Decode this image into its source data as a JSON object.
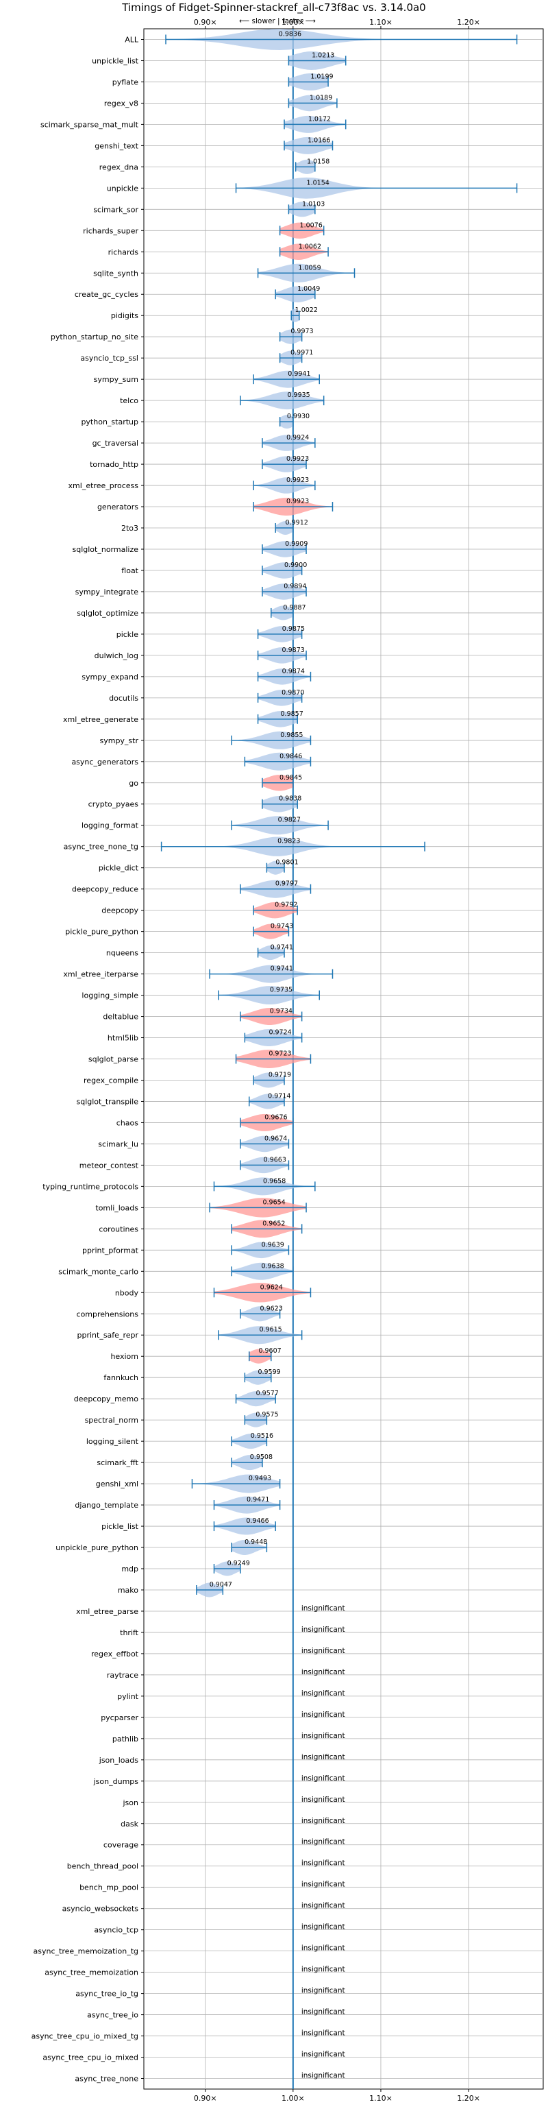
{
  "chart_data": {
    "type": "violin",
    "title": "Timings of Fidget-Spinner-stackref_all-c73f8ac vs. 3.14.0a0",
    "subtitle": "⟵ slower | faster ⟶",
    "xlim": [
      0.83,
      1.285
    ],
    "x_ticks": [
      "0.90×",
      "1.00×",
      "1.10×",
      "1.20×"
    ],
    "x_tick_values": [
      0.9,
      1.0,
      1.1,
      1.2
    ],
    "reference_line": 1.0,
    "grid": true,
    "colors": {
      "faster": "#aec7e8",
      "slower": "#ff9896",
      "line": "#1f77b4"
    },
    "benchmarks": [
      {
        "name": "ALL",
        "mean": 0.9836,
        "label": "0.9836",
        "min": 0.855,
        "max": 1.255,
        "width": 0.045,
        "color": "faster"
      },
      {
        "name": "unpickle_list",
        "mean": 1.0213,
        "label": "1.0213",
        "min": 0.995,
        "max": 1.06,
        "width": 0.022,
        "color": "faster"
      },
      {
        "name": "pyflate",
        "mean": 1.0199,
        "label": "1.0199",
        "min": 0.995,
        "max": 1.04,
        "width": 0.018,
        "color": "faster"
      },
      {
        "name": "regex_v8",
        "mean": 1.0189,
        "label": "1.0189",
        "min": 0.995,
        "max": 1.05,
        "width": 0.015,
        "color": "faster"
      },
      {
        "name": "scimark_sparse_mat_mult",
        "mean": 1.0172,
        "label": "1.0172",
        "min": 0.99,
        "max": 1.06,
        "width": 0.018,
        "color": "faster"
      },
      {
        "name": "genshi_text",
        "mean": 1.0166,
        "label": "1.0166",
        "min": 0.99,
        "max": 1.045,
        "width": 0.018,
        "color": "faster"
      },
      {
        "name": "regex_dna",
        "mean": 1.0158,
        "label": "1.0158",
        "min": 1.003,
        "max": 1.025,
        "width": 0.01,
        "color": "faster"
      },
      {
        "name": "unpickle",
        "mean": 1.0154,
        "label": "1.0154",
        "min": 0.935,
        "max": 1.255,
        "width": 0.03,
        "color": "faster"
      },
      {
        "name": "scimark_sor",
        "mean": 1.0103,
        "label": "1.0103",
        "min": 0.995,
        "max": 1.025,
        "width": 0.012,
        "color": "faster"
      },
      {
        "name": "richards_super",
        "mean": 1.0076,
        "label": "1.0076",
        "min": 0.985,
        "max": 1.035,
        "width": 0.015,
        "color": "slower"
      },
      {
        "name": "richards",
        "mean": 1.0062,
        "label": "1.0062",
        "min": 0.985,
        "max": 1.04,
        "width": 0.015,
        "color": "slower"
      },
      {
        "name": "sqlite_synth",
        "mean": 1.0059,
        "label": "1.0059",
        "min": 0.96,
        "max": 1.07,
        "width": 0.022,
        "color": "faster"
      },
      {
        "name": "create_gc_cycles",
        "mean": 1.0049,
        "label": "1.0049",
        "min": 0.98,
        "max": 1.025,
        "width": 0.015,
        "color": "faster"
      },
      {
        "name": "pidigits",
        "mean": 1.0022,
        "label": "1.0022",
        "min": 0.998,
        "max": 1.007,
        "width": 0.006,
        "color": "faster"
      },
      {
        "name": "python_startup_no_site",
        "mean": 0.9973,
        "label": "0.9973",
        "min": 0.985,
        "max": 1.01,
        "width": 0.01,
        "color": "faster"
      },
      {
        "name": "asyncio_tcp_ssl",
        "mean": 0.9971,
        "label": "0.9971",
        "min": 0.985,
        "max": 1.01,
        "width": 0.01,
        "color": "faster"
      },
      {
        "name": "sympy_sum",
        "mean": 0.9941,
        "label": "0.9941",
        "min": 0.955,
        "max": 1.03,
        "width": 0.018,
        "color": "faster"
      },
      {
        "name": "telco",
        "mean": 0.9935,
        "label": "0.9935",
        "min": 0.94,
        "max": 1.035,
        "width": 0.02,
        "color": "faster"
      },
      {
        "name": "python_startup",
        "mean": 0.993,
        "label": "0.9930",
        "min": 0.985,
        "max": 1.0,
        "width": 0.008,
        "color": "faster"
      },
      {
        "name": "gc_traversal",
        "mean": 0.9924,
        "label": "0.9924",
        "min": 0.965,
        "max": 1.025,
        "width": 0.015,
        "color": "faster"
      },
      {
        "name": "tornado_http",
        "mean": 0.9923,
        "label": "0.9923",
        "min": 0.965,
        "max": 1.015,
        "width": 0.015,
        "color": "faster"
      },
      {
        "name": "xml_etree_process",
        "mean": 0.9923,
        "label": "0.9923",
        "min": 0.955,
        "max": 1.025,
        "width": 0.015,
        "color": "faster"
      },
      {
        "name": "generators",
        "mean": 0.9923,
        "label": "0.9923",
        "min": 0.955,
        "max": 1.045,
        "width": 0.02,
        "color": "slower"
      },
      {
        "name": "2to3",
        "mean": 0.9912,
        "label": "0.9912",
        "min": 0.98,
        "max": 1.0,
        "width": 0.008,
        "color": "faster"
      },
      {
        "name": "sqlglot_normalize",
        "mean": 0.9909,
        "label": "0.9909",
        "min": 0.965,
        "max": 1.015,
        "width": 0.015,
        "color": "faster"
      },
      {
        "name": "float",
        "mean": 0.99,
        "label": "0.9900",
        "min": 0.965,
        "max": 1.01,
        "width": 0.015,
        "color": "faster"
      },
      {
        "name": "sympy_integrate",
        "mean": 0.9894,
        "label": "0.9894",
        "min": 0.965,
        "max": 1.015,
        "width": 0.015,
        "color": "faster"
      },
      {
        "name": "sqlglot_optimize",
        "mean": 0.9887,
        "label": "0.9887",
        "min": 0.975,
        "max": 1.0,
        "width": 0.01,
        "color": "faster"
      },
      {
        "name": "pickle",
        "mean": 0.9875,
        "label": "0.9875",
        "min": 0.96,
        "max": 1.01,
        "width": 0.015,
        "color": "faster"
      },
      {
        "name": "dulwich_log",
        "mean": 0.9873,
        "label": "0.9873",
        "min": 0.96,
        "max": 1.015,
        "width": 0.015,
        "color": "faster"
      },
      {
        "name": "sympy_expand",
        "mean": 0.9874,
        "label": "0.9874",
        "min": 0.96,
        "max": 1.02,
        "width": 0.015,
        "color": "faster"
      },
      {
        "name": "docutils",
        "mean": 0.987,
        "label": "0.9870",
        "min": 0.96,
        "max": 1.01,
        "width": 0.015,
        "color": "faster"
      },
      {
        "name": "xml_etree_generate",
        "mean": 0.9857,
        "label": "0.9857",
        "min": 0.96,
        "max": 1.005,
        "width": 0.015,
        "color": "faster"
      },
      {
        "name": "sympy_str",
        "mean": 0.9855,
        "label": "0.9855",
        "min": 0.93,
        "max": 1.02,
        "width": 0.02,
        "color": "faster"
      },
      {
        "name": "async_generators",
        "mean": 0.9846,
        "label": "0.9846",
        "min": 0.945,
        "max": 1.02,
        "width": 0.02,
        "color": "faster"
      },
      {
        "name": "go",
        "mean": 0.9845,
        "label": "0.9845",
        "min": 0.965,
        "max": 1.0,
        "width": 0.015,
        "color": "slower"
      },
      {
        "name": "crypto_pyaes",
        "mean": 0.9838,
        "label": "0.9838",
        "min": 0.965,
        "max": 1.005,
        "width": 0.015,
        "color": "faster"
      },
      {
        "name": "logging_format",
        "mean": 0.9827,
        "label": "0.9827",
        "min": 0.93,
        "max": 1.04,
        "width": 0.022,
        "color": "faster"
      },
      {
        "name": "async_tree_none_tg",
        "mean": 0.9823,
        "label": "0.9823",
        "min": 0.85,
        "max": 1.15,
        "width": 0.025,
        "color": "faster"
      },
      {
        "name": "pickle_dict",
        "mean": 0.9801,
        "label": "0.9801",
        "min": 0.97,
        "max": 0.99,
        "width": 0.008,
        "color": "faster"
      },
      {
        "name": "deepcopy_reduce",
        "mean": 0.9797,
        "label": "0.9797",
        "min": 0.94,
        "max": 1.02,
        "width": 0.02,
        "color": "faster"
      },
      {
        "name": "deepcopy",
        "mean": 0.9792,
        "label": "0.9792",
        "min": 0.955,
        "max": 1.005,
        "width": 0.015,
        "color": "slower"
      },
      {
        "name": "pickle_pure_python",
        "mean": 0.9743,
        "label": "0.9743",
        "min": 0.955,
        "max": 0.995,
        "width": 0.012,
        "color": "slower"
      },
      {
        "name": "nqueens",
        "mean": 0.9741,
        "label": "0.9741",
        "min": 0.96,
        "max": 0.99,
        "width": 0.01,
        "color": "faster"
      },
      {
        "name": "xml_etree_iterparse",
        "mean": 0.9741,
        "label": "0.9741",
        "min": 0.905,
        "max": 1.045,
        "width": 0.02,
        "color": "faster"
      },
      {
        "name": "logging_simple",
        "mean": 0.9735,
        "label": "0.9735",
        "min": 0.915,
        "max": 1.03,
        "width": 0.022,
        "color": "faster"
      },
      {
        "name": "deltablue",
        "mean": 0.9734,
        "label": "0.9734",
        "min": 0.94,
        "max": 1.01,
        "width": 0.018,
        "color": "slower"
      },
      {
        "name": "html5lib",
        "mean": 0.9724,
        "label": "0.9724",
        "min": 0.945,
        "max": 1.01,
        "width": 0.018,
        "color": "faster"
      },
      {
        "name": "sqlglot_parse",
        "mean": 0.9723,
        "label": "0.9723",
        "min": 0.935,
        "max": 1.02,
        "width": 0.022,
        "color": "slower"
      },
      {
        "name": "regex_compile",
        "mean": 0.9719,
        "label": "0.9719",
        "min": 0.955,
        "max": 0.99,
        "width": 0.012,
        "color": "faster"
      },
      {
        "name": "sqlglot_transpile",
        "mean": 0.9714,
        "label": "0.9714",
        "min": 0.95,
        "max": 0.99,
        "width": 0.012,
        "color": "faster"
      },
      {
        "name": "chaos",
        "mean": 0.9676,
        "label": "0.9676",
        "min": 0.94,
        "max": 1.0,
        "width": 0.018,
        "color": "slower"
      },
      {
        "name": "scimark_lu",
        "mean": 0.9674,
        "label": "0.9674",
        "min": 0.94,
        "max": 0.995,
        "width": 0.015,
        "color": "faster"
      },
      {
        "name": "meteor_contest",
        "mean": 0.9663,
        "label": "0.9663",
        "min": 0.94,
        "max": 0.995,
        "width": 0.015,
        "color": "faster"
      },
      {
        "name": "typing_runtime_protocols",
        "mean": 0.9658,
        "label": "0.9658",
        "min": 0.91,
        "max": 1.025,
        "width": 0.02,
        "color": "faster"
      },
      {
        "name": "tomli_loads",
        "mean": 0.9654,
        "label": "0.9654",
        "min": 0.905,
        "max": 1.015,
        "width": 0.025,
        "color": "slower"
      },
      {
        "name": "coroutines",
        "mean": 0.9652,
        "label": "0.9652",
        "min": 0.93,
        "max": 1.01,
        "width": 0.02,
        "color": "slower"
      },
      {
        "name": "pprint_pformat",
        "mean": 0.9639,
        "label": "0.9639",
        "min": 0.93,
        "max": 0.995,
        "width": 0.015,
        "color": "faster"
      },
      {
        "name": "scimark_monte_carlo",
        "mean": 0.9638,
        "label": "0.9638",
        "min": 0.93,
        "max": 1.0,
        "width": 0.018,
        "color": "faster"
      },
      {
        "name": "nbody",
        "mean": 0.9624,
        "label": "0.9624",
        "min": 0.91,
        "max": 1.02,
        "width": 0.025,
        "color": "slower"
      },
      {
        "name": "comprehensions",
        "mean": 0.9623,
        "label": "0.9623",
        "min": 0.94,
        "max": 0.985,
        "width": 0.012,
        "color": "faster"
      },
      {
        "name": "pprint_safe_repr",
        "mean": 0.9615,
        "label": "0.9615",
        "min": 0.915,
        "max": 1.01,
        "width": 0.02,
        "color": "faster"
      },
      {
        "name": "hexiom",
        "mean": 0.9607,
        "label": "0.9607",
        "min": 0.95,
        "max": 0.975,
        "width": 0.01,
        "color": "slower"
      },
      {
        "name": "fannkuch",
        "mean": 0.9599,
        "label": "0.9599",
        "min": 0.945,
        "max": 0.975,
        "width": 0.01,
        "color": "faster"
      },
      {
        "name": "deepcopy_memo",
        "mean": 0.9577,
        "label": "0.9577",
        "min": 0.935,
        "max": 0.98,
        "width": 0.012,
        "color": "faster"
      },
      {
        "name": "spectral_norm",
        "mean": 0.9575,
        "label": "0.9575",
        "min": 0.945,
        "max": 0.97,
        "width": 0.01,
        "color": "faster"
      },
      {
        "name": "logging_silent",
        "mean": 0.9516,
        "label": "0.9516",
        "min": 0.93,
        "max": 0.97,
        "width": 0.012,
        "color": "faster"
      },
      {
        "name": "scimark_fft",
        "mean": 0.9508,
        "label": "0.9508",
        "min": 0.93,
        "max": 0.965,
        "width": 0.012,
        "color": "faster"
      },
      {
        "name": "genshi_xml",
        "mean": 0.9493,
        "label": "0.9493",
        "min": 0.885,
        "max": 0.985,
        "width": 0.022,
        "color": "faster"
      },
      {
        "name": "django_template",
        "mean": 0.9471,
        "label": "0.9471",
        "min": 0.91,
        "max": 0.985,
        "width": 0.018,
        "color": "faster"
      },
      {
        "name": "pickle_list",
        "mean": 0.9466,
        "label": "0.9466",
        "min": 0.91,
        "max": 0.98,
        "width": 0.018,
        "color": "faster"
      },
      {
        "name": "unpickle_pure_python",
        "mean": 0.9448,
        "label": "0.9448",
        "min": 0.93,
        "max": 0.97,
        "width": 0.012,
        "color": "faster"
      },
      {
        "name": "mdp",
        "mean": 0.9249,
        "label": "0.9249",
        "min": 0.91,
        "max": 0.94,
        "width": 0.01,
        "color": "faster"
      },
      {
        "name": "mako",
        "mean": 0.9047,
        "label": "0.9047",
        "min": 0.89,
        "max": 0.92,
        "width": 0.01,
        "color": "faster"
      },
      {
        "name": "xml_etree_parse",
        "insignificant": true,
        "label": "insignificant"
      },
      {
        "name": "thrift",
        "insignificant": true,
        "label": "insignificant"
      },
      {
        "name": "regex_effbot",
        "insignificant": true,
        "label": "insignificant"
      },
      {
        "name": "raytrace",
        "insignificant": true,
        "label": "insignificant"
      },
      {
        "name": "pylint",
        "insignificant": true,
        "label": "insignificant"
      },
      {
        "name": "pycparser",
        "insignificant": true,
        "label": "insignificant"
      },
      {
        "name": "pathlib",
        "insignificant": true,
        "label": "insignificant"
      },
      {
        "name": "json_loads",
        "insignificant": true,
        "label": "insignificant"
      },
      {
        "name": "json_dumps",
        "insignificant": true,
        "label": "insignificant"
      },
      {
        "name": "json",
        "insignificant": true,
        "label": "insignificant"
      },
      {
        "name": "dask",
        "insignificant": true,
        "label": "insignificant"
      },
      {
        "name": "coverage",
        "insignificant": true,
        "label": "insignificant"
      },
      {
        "name": "bench_thread_pool",
        "insignificant": true,
        "label": "insignificant"
      },
      {
        "name": "bench_mp_pool",
        "insignificant": true,
        "label": "insignificant"
      },
      {
        "name": "asyncio_websockets",
        "insignificant": true,
        "label": "insignificant"
      },
      {
        "name": "asyncio_tcp",
        "insignificant": true,
        "label": "insignificant"
      },
      {
        "name": "async_tree_memoization_tg",
        "insignificant": true,
        "label": "insignificant"
      },
      {
        "name": "async_tree_memoization",
        "insignificant": true,
        "label": "insignificant"
      },
      {
        "name": "async_tree_io_tg",
        "insignificant": true,
        "label": "insignificant"
      },
      {
        "name": "async_tree_io",
        "insignificant": true,
        "label": "insignificant"
      },
      {
        "name": "async_tree_cpu_io_mixed_tg",
        "insignificant": true,
        "label": "insignificant"
      },
      {
        "name": "async_tree_cpu_io_mixed",
        "insignificant": true,
        "label": "insignificant"
      },
      {
        "name": "async_tree_none",
        "insignificant": true,
        "label": "insignificant"
      }
    ]
  }
}
